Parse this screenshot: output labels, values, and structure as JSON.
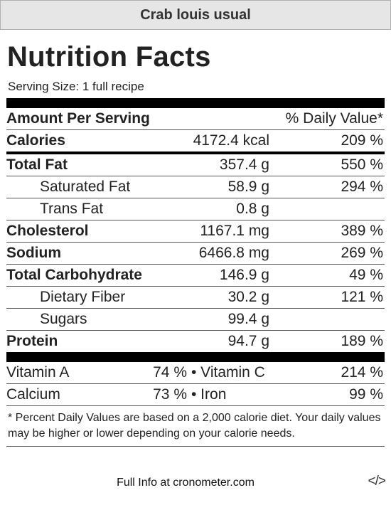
{
  "recipe_title": "Crab louis usual",
  "heading": "Nutrition Facts",
  "serving_size": "Serving Size: 1 full recipe",
  "header": {
    "amount_label": "Amount Per Serving",
    "dv_label": "% Daily Value*"
  },
  "calories": {
    "label": "Calories",
    "amount": "4172.4 kcal",
    "dv": "209 %"
  },
  "nutrients": [
    {
      "label": "Total Fat",
      "amount": "357.4 g",
      "dv": "550 %"
    },
    {
      "label": "Saturated Fat",
      "amount": "58.9 g",
      "dv": "294 %"
    },
    {
      "label": "Trans Fat",
      "amount": "0.8 g",
      "dv": ""
    },
    {
      "label": "Cholesterol",
      "amount": "1167.1 mg",
      "dv": "389 %"
    },
    {
      "label": "Sodium",
      "amount": "6466.8 mg",
      "dv": "269 %"
    },
    {
      "label": "Total Carbohydrate",
      "amount": "146.9 g",
      "dv": "49 %"
    },
    {
      "label": "Dietary Fiber",
      "amount": "30.2 g",
      "dv": "121 %"
    },
    {
      "label": "Sugars",
      "amount": "99.4 g",
      "dv": ""
    },
    {
      "label": "Protein",
      "amount": "94.7 g",
      "dv": "189 %"
    }
  ],
  "vitamins": [
    {
      "a_label": "Vitamin A",
      "a_value": "74 %",
      "b_label": "• Vitamin C",
      "b_value": "214 %"
    },
    {
      "a_label": "Calcium",
      "a_value": "73 %",
      "b_label": "• Iron",
      "b_value": "99 %"
    }
  ],
  "footnote": "* Percent Daily Values are based on a 2,000 calorie diet. Your daily values may be higher or lower depending on your calorie needs.",
  "footer": {
    "link_text": "Full Info at cronometer.com",
    "embed_icon": "code-icon",
    "embed_text": "</>"
  }
}
